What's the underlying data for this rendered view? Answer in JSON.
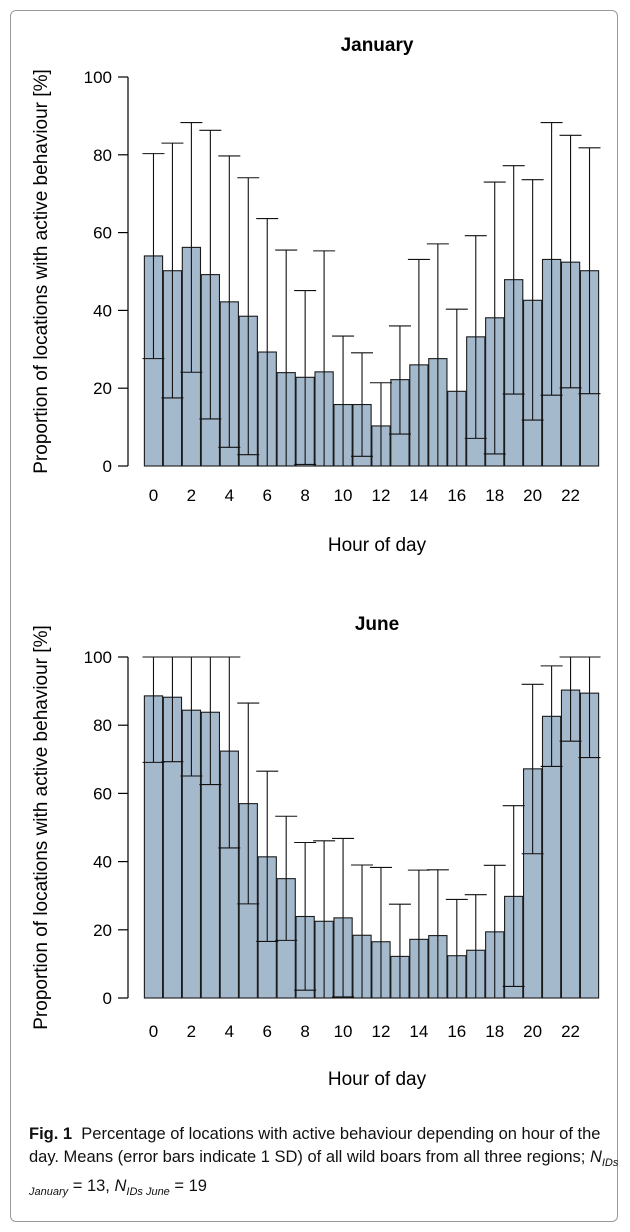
{
  "chart_data": [
    {
      "type": "bar",
      "title": "January",
      "xlabel": "Hour of day",
      "ylabel": "Proportion of locations with active behaviour [%]",
      "ylim": [
        0,
        100
      ],
      "yticks": [
        0,
        20,
        40,
        60,
        80,
        100
      ],
      "xticks": [
        0,
        2,
        4,
        6,
        8,
        10,
        12,
        14,
        16,
        18,
        20,
        22
      ],
      "bar_color": "#a5b9cd",
      "x": [
        0,
        1,
        2,
        3,
        4,
        5,
        6,
        7,
        8,
        9,
        10,
        11,
        12,
        13,
        14,
        15,
        16,
        17,
        18,
        19,
        20,
        21,
        22,
        23
      ],
      "values": [
        54,
        50.2,
        56.2,
        49.2,
        42.2,
        38.5,
        29.3,
        24,
        22.8,
        24.2,
        15.8,
        15.8,
        10.3,
        22.2,
        26,
        27.6,
        19.2,
        33.2,
        38.1,
        47.9,
        42.6,
        53.1,
        52.4,
        50.2
      ],
      "error_upper": [
        80.3,
        83,
        88.3,
        86.3,
        79.7,
        74.1,
        63.6,
        55.5,
        45.1,
        55.3,
        33.4,
        29.1,
        21.4,
        36,
        53.1,
        57.1,
        40.3,
        59.2,
        73,
        77.2,
        73.6,
        88.3,
        85,
        81.8
      ],
      "error_lower": [
        27.6,
        17.5,
        24.1,
        12.1,
        4.8,
        2.9,
        0,
        0,
        0.4,
        0,
        0,
        2.5,
        0,
        8.2,
        0,
        0,
        0,
        7.1,
        3.1,
        18.5,
        11.8,
        18.2,
        20.1,
        18.6
      ]
    },
    {
      "type": "bar",
      "title": "June",
      "xlabel": "Hour of day",
      "ylabel": "Proportion of locations with active behaviour [%]",
      "ylim": [
        0,
        100
      ],
      "yticks": [
        0,
        20,
        40,
        60,
        80,
        100
      ],
      "xticks": [
        0,
        2,
        4,
        6,
        8,
        10,
        12,
        14,
        16,
        18,
        20,
        22
      ],
      "bar_color": "#a5b9cd",
      "x": [
        0,
        1,
        2,
        3,
        4,
        5,
        6,
        7,
        8,
        9,
        10,
        11,
        12,
        13,
        14,
        15,
        16,
        17,
        18,
        19,
        20,
        21,
        22,
        23
      ],
      "values": [
        88.6,
        88.2,
        84.4,
        83.8,
        72.4,
        57,
        41.4,
        35,
        23.9,
        22.5,
        23.5,
        18.4,
        16.5,
        12.2,
        17.2,
        18.3,
        12.4,
        14,
        19.4,
        29.8,
        67.2,
        82.6,
        90.3,
        89.4
      ],
      "error_upper": [
        100,
        100,
        100,
        100,
        100,
        86.5,
        66.5,
        53.3,
        45.6,
        46.1,
        46.8,
        39,
        38.3,
        27.5,
        37.5,
        37.6,
        28.9,
        30.3,
        38.9,
        56.4,
        92,
        97.4,
        100,
        100
      ],
      "error_lower": [
        69.1,
        69.3,
        65.1,
        62.6,
        44,
        27.6,
        16.6,
        16.9,
        2.3,
        0,
        0.3,
        0,
        0,
        0,
        0,
        0,
        0,
        0,
        0,
        3.4,
        42.3,
        67.9,
        75.3,
        70.5
      ]
    }
  ],
  "caption": {
    "label": "Fig. 1",
    "text1": "Percentage of locations with active behaviour depending on hour of the day. Means (error bars indicate 1 SD) of all wild boars from all three regions; ",
    "n_symbol": "N",
    "n1_sub": "IDs January",
    "n1_value": " = 13, ",
    "n2_sub": "IDs June",
    "n2_value": " = 19"
  }
}
